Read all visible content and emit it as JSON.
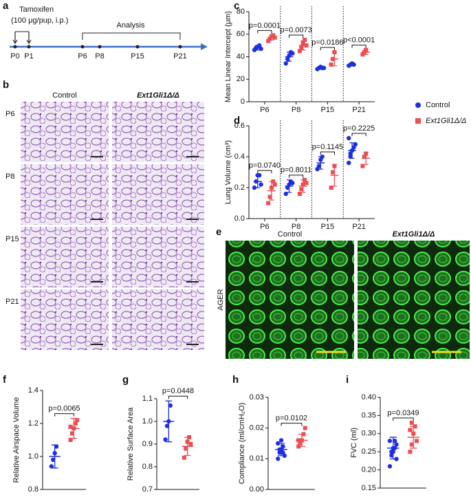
{
  "panel_labels": [
    "a",
    "b",
    "c",
    "d",
    "e",
    "f",
    "g",
    "h",
    "i"
  ],
  "timeline": {
    "tamoxifen": "Tamoxifen",
    "dose": "(100 μg/pup, i.p.)",
    "analysis": "Analysis",
    "days": [
      "P0",
      "P1",
      "P6",
      "P8",
      "P15",
      "P21"
    ]
  },
  "histology": {
    "columns": [
      "Control",
      "Ext1Gli1Δ/Δ"
    ],
    "rows": [
      "P6",
      "P8",
      "P15",
      "P21"
    ]
  },
  "immunostain": {
    "columns": [
      "Control",
      "Ext1Gli1Δ/Δ"
    ],
    "stain": "AGER"
  },
  "chart_data": [
    {
      "type": "dot",
      "ylabel": "Mean Linear Intercept (μm)",
      "categories": [
        "P6",
        "P8",
        "P15",
        "P21"
      ],
      "separators": true,
      "ylim": [
        0,
        80
      ],
      "yticks": [
        0,
        20,
        40,
        60,
        80
      ],
      "annotations": [
        "p=0.0001",
        "p=0.0073",
        "p=0.0186",
        "p<0.0001"
      ],
      "series": [
        {
          "name": "Control",
          "color": "#1f2fe0",
          "marker": "circle",
          "values": [
            [
              46,
              48,
              49,
              50,
              47
            ],
            [
              34,
              38,
              41,
              44,
              43
            ],
            [
              29,
              30,
              31,
              30,
              30
            ],
            [
              32,
              33,
              34,
              33
            ]
          ],
          "mean": [
            48,
            40,
            30,
            33
          ],
          "sd": [
            2,
            4,
            1,
            1
          ]
        },
        {
          "name": "Ext1Gli1Δ/Δ",
          "color": "#ee4b52",
          "marker": "square",
          "values": [
            [
              54,
              56,
              58,
              59,
              57
            ],
            [
              45,
              48,
              52,
              55,
              50
            ],
            [
              33,
              38,
              44
            ],
            [
              42,
              44,
              46
            ]
          ],
          "mean": [
            57,
            50,
            38,
            44
          ],
          "sd": [
            2,
            4,
            6,
            2
          ]
        }
      ]
    },
    {
      "type": "dot",
      "ylabel": "Lung Volume (cm³)",
      "categories": [
        "P6",
        "P8",
        "P15",
        "P21"
      ],
      "separators": true,
      "ylim": [
        0,
        0.6
      ],
      "yticks": [
        {
          "value": 0,
          "label": "0.0"
        },
        0.2,
        0.4,
        0.6
      ],
      "annotations": [
        "p=0.0740",
        "p=0.8011",
        "p=0.1145",
        "p=0.2225"
      ],
      "series": [
        {
          "color": "#1f2fe0",
          "marker": "circle",
          "values": [
            [
              0.2,
              0.24,
              0.28,
              0.28,
              0.22
            ],
            [
              0.16,
              0.2,
              0.22,
              0.24,
              0.23
            ],
            [
              0.32,
              0.34,
              0.38,
              0.4
            ],
            [
              0.36,
              0.4,
              0.44,
              0.46,
              0.48,
              0.52,
              0.42
            ]
          ],
          "mean": [
            0.24,
            0.21,
            0.36,
            0.44
          ],
          "sd": [
            0.04,
            0.04,
            0.04,
            0.05
          ]
        },
        {
          "color": "#ee4b52",
          "marker": "square",
          "values": [
            [
              0.1,
              0.14,
              0.2,
              0.24,
              0.22
            ],
            [
              0.16,
              0.19,
              0.22,
              0.25,
              0.23
            ],
            [
              0.2,
              0.3,
              0.34
            ],
            [
              0.34,
              0.4,
              0.42
            ]
          ],
          "mean": [
            0.18,
            0.21,
            0.28,
            0.39
          ],
          "sd": [
            0.06,
            0.04,
            0.07,
            0.04
          ]
        }
      ]
    },
    {
      "type": "dot",
      "ylabel": "Relative Airspace Volume",
      "ylim": [
        0.8,
        1.4
      ],
      "yticks": [
        0.8,
        {
          "value": 1,
          "label": "1.0"
        },
        1.2,
        1.4
      ],
      "annotations": [
        "p=0.0065"
      ],
      "series": [
        {
          "color": "#1f2fe0",
          "marker": "circle",
          "values": [
            [
              0.94,
              0.98,
              1.02,
              1.06
            ]
          ],
          "mean": [
            1
          ],
          "sd": [
            0.07
          ]
        },
        {
          "color": "#ee4b52",
          "marker": "square",
          "values": [
            [
              1.1,
              1.14,
              1.17,
              1.2,
              1.22,
              1.18
            ]
          ],
          "mean": [
            1.17
          ],
          "sd": [
            0.06
          ]
        }
      ]
    },
    {
      "type": "dot",
      "ylabel": "Relative Surface Area",
      "ylim": [
        0.7,
        1.1
      ],
      "yticks": [
        0.7,
        0.8,
        0.9,
        {
          "value": 1,
          "label": "1.0"
        },
        1.1
      ],
      "annotations": [
        "p=0.0448"
      ],
      "series": [
        {
          "color": "#1f2fe0",
          "marker": "circle",
          "values": [
            [
              0.92,
              0.98,
              1,
              1.07
            ]
          ],
          "mean": [
            1
          ],
          "sd": [
            0.09
          ]
        },
        {
          "color": "#ee4b52",
          "marker": "square",
          "values": [
            [
              0.84,
              0.88,
              0.91,
              0.93,
              0.9
            ]
          ],
          "mean": [
            0.89
          ],
          "sd": [
            0.04
          ]
        }
      ]
    },
    {
      "type": "dot",
      "ylabel": "Compliance (ml/cmH₂O)",
      "ylim": [
        0,
        0.03
      ],
      "yticks": [
        {
          "value": 0,
          "label": "0.00"
        },
        0.01,
        0.02,
        0.03
      ],
      "annotations": [
        "p=0.0102"
      ],
      "series": [
        {
          "color": "#1f2fe0",
          "marker": "circle",
          "values": [
            [
              0.01,
              0.012,
              0.013,
              0.014,
              0.011,
              0.015,
              0.013,
              0.016,
              0.012
            ]
          ],
          "mean": [
            0.013
          ],
          "sd": [
            0.002
          ]
        },
        {
          "color": "#ee4b52",
          "marker": "square",
          "values": [
            [
              0.014,
              0.015,
              0.016,
              0.018,
              0.02,
              0.016,
              0.015
            ]
          ],
          "mean": [
            0.016
          ],
          "sd": [
            0.002
          ]
        }
      ]
    },
    {
      "type": "dot",
      "ylabel": "FVC (ml)",
      "ylim": [
        0.15,
        0.4
      ],
      "yticks": [
        0.15,
        {
          "value": 0.2,
          "label": "0.20"
        },
        0.25,
        {
          "value": 0.3,
          "label": "0.30"
        },
        0.35,
        {
          "value": 0.4,
          "label": "0.40"
        }
      ],
      "annotations": [
        "p=0.0349"
      ],
      "series": [
        {
          "color": "#1f2fe0",
          "marker": "circle",
          "values": [
            [
              0.21,
              0.24,
              0.25,
              0.26,
              0.27,
              0.28,
              0.25,
              0.26,
              0.28,
              0.23
            ]
          ],
          "mean": [
            0.26
          ],
          "sd": [
            0.03
          ]
        },
        {
          "color": "#ee4b52",
          "marker": "square",
          "values": [
            [
              0.25,
              0.27,
              0.3,
              0.32,
              0.28,
              0.31,
              0.33
            ]
          ],
          "mean": [
            0.29
          ],
          "sd": [
            0.03
          ]
        }
      ]
    }
  ]
}
